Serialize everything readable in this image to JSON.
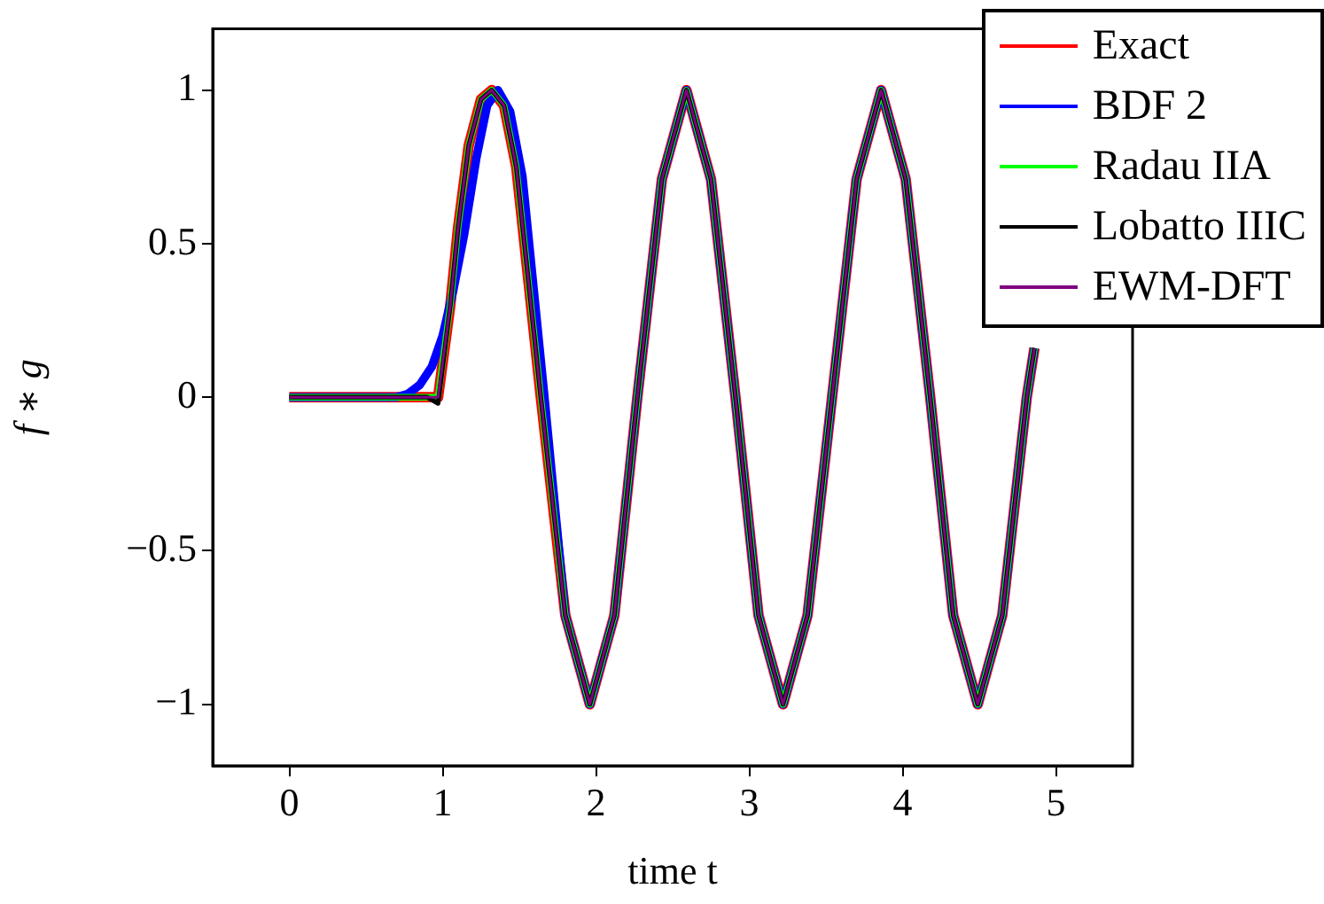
{
  "chart_data": {
    "type": "line",
    "xlabel": "time t",
    "ylabel": "f ∗ g",
    "xlim": [
      -0.5,
      5.5
    ],
    "ylim": [
      -1.2,
      1.2
    ],
    "xticks": [
      0,
      1,
      2,
      3,
      4,
      5
    ],
    "yticks": [
      {
        "value": -1,
        "label": "−1"
      },
      {
        "value": -0.5,
        "label": "−0.5"
      },
      0,
      0.5,
      1
    ],
    "grid": false,
    "legend": "top right",
    "marker": "none",
    "line_style": "solid",
    "series": [
      {
        "name": "Exact",
        "color": "#ff0000",
        "x": [
          0,
          0.9,
          0.97,
          1.05,
          1.1,
          1.17,
          1.25,
          1.32,
          1.4,
          1.48,
          1.64,
          1.8,
          1.96,
          2.12,
          2.27,
          2.43,
          2.59,
          2.75,
          2.91,
          3.06,
          3.22,
          3.38,
          3.54,
          3.7,
          3.86,
          4.02,
          4.18,
          4.33,
          4.49,
          4.65,
          4.81,
          4.86
        ],
        "values": [
          0,
          0,
          0,
          0.3,
          0.55,
          0.82,
          0.97,
          1,
          0.95,
          0.75,
          0,
          -0.71,
          -1,
          -0.71,
          0,
          0.71,
          1,
          0.71,
          0,
          -0.71,
          -1,
          -0.71,
          0,
          0.71,
          1,
          0.71,
          0,
          -0.71,
          -1,
          -0.71,
          0,
          0.16
        ]
      },
      {
        "name": "BDF 2",
        "color": "#0000ff",
        "x": [
          0,
          0.7,
          0.77,
          0.85,
          0.93,
          1.0,
          1.07,
          1.14,
          1.22,
          1.29,
          1.36,
          1.44,
          1.52,
          1.66,
          1.8,
          1.96,
          2.12,
          2.27,
          2.43,
          2.59,
          2.75,
          2.91,
          3.06,
          3.22,
          3.38,
          3.54,
          3.7,
          3.86,
          4.02,
          4.18,
          4.33,
          4.49,
          4.65,
          4.81,
          4.86
        ],
        "values": [
          0,
          0,
          0.01,
          0.04,
          0.1,
          0.2,
          0.35,
          0.53,
          0.78,
          0.95,
          1,
          0.93,
          0.72,
          0.02,
          -0.71,
          -1,
          -0.71,
          0,
          0.71,
          1,
          0.71,
          0,
          -0.71,
          -1,
          -0.71,
          0,
          0.71,
          1,
          0.71,
          0,
          -0.71,
          -1,
          -0.71,
          0,
          0.16
        ]
      },
      {
        "name": "Radau IIA",
        "color": "#00ff00",
        "x": [
          0,
          0.9,
          0.97,
          1.05,
          1.1,
          1.17,
          1.25,
          1.32,
          1.4,
          1.48,
          1.64,
          1.8,
          1.96,
          2.12,
          2.27,
          2.43,
          2.59,
          2.75,
          2.91,
          3.06,
          3.22,
          3.38,
          3.54,
          3.7,
          3.86,
          4.02,
          4.18,
          4.33,
          4.49,
          4.65,
          4.81,
          4.86
        ],
        "values": [
          0,
          0,
          0,
          0.3,
          0.55,
          0.82,
          0.97,
          1,
          0.95,
          0.75,
          0,
          -0.71,
          -1,
          -0.71,
          0,
          0.71,
          1,
          0.71,
          0,
          -0.71,
          -1,
          -0.71,
          0,
          0.71,
          1,
          0.71,
          0,
          -0.71,
          -1,
          -0.71,
          0,
          0.16
        ]
      },
      {
        "name": "Lobatto IIIC",
        "color": "#000000",
        "x": [
          0,
          0.9,
          0.97,
          1.05,
          1.1,
          1.17,
          1.25,
          1.32,
          1.4,
          1.48,
          1.64,
          1.8,
          1.96,
          2.12,
          2.27,
          2.43,
          2.59,
          2.75,
          2.91,
          3.06,
          3.22,
          3.38,
          3.54,
          3.7,
          3.86,
          4.02,
          4.18,
          4.33,
          4.49,
          4.65,
          4.81,
          4.86
        ],
        "values": [
          0,
          0,
          -0.02,
          0.3,
          0.55,
          0.82,
          0.97,
          1,
          0.95,
          0.75,
          0,
          -0.71,
          -1,
          -0.71,
          0,
          0.71,
          1,
          0.71,
          0,
          -0.71,
          -1,
          -0.71,
          0,
          0.71,
          1,
          0.71,
          0,
          -0.71,
          -1,
          -0.71,
          0,
          0.16
        ]
      },
      {
        "name": "EWM-DFT",
        "color": "#800080",
        "x": [
          0,
          0.9,
          0.97,
          1.05,
          1.1,
          1.17,
          1.25,
          1.32,
          1.4,
          1.48,
          1.64,
          1.8,
          1.96,
          2.12,
          2.27,
          2.43,
          2.59,
          2.75,
          2.91,
          3.06,
          3.22,
          3.38,
          3.54,
          3.7,
          3.86,
          4.02,
          4.18,
          4.33,
          4.49,
          4.65,
          4.81,
          4.86
        ],
        "values": [
          0,
          0,
          0,
          0.3,
          0.55,
          0.82,
          0.97,
          1,
          0.95,
          0.75,
          0,
          -0.71,
          -1,
          -0.71,
          0,
          0.71,
          1,
          0.71,
          0,
          -0.71,
          -1,
          -0.71,
          0,
          0.71,
          1,
          0.71,
          0,
          -0.71,
          -1,
          -0.71,
          0,
          0.16
        ]
      }
    ]
  }
}
